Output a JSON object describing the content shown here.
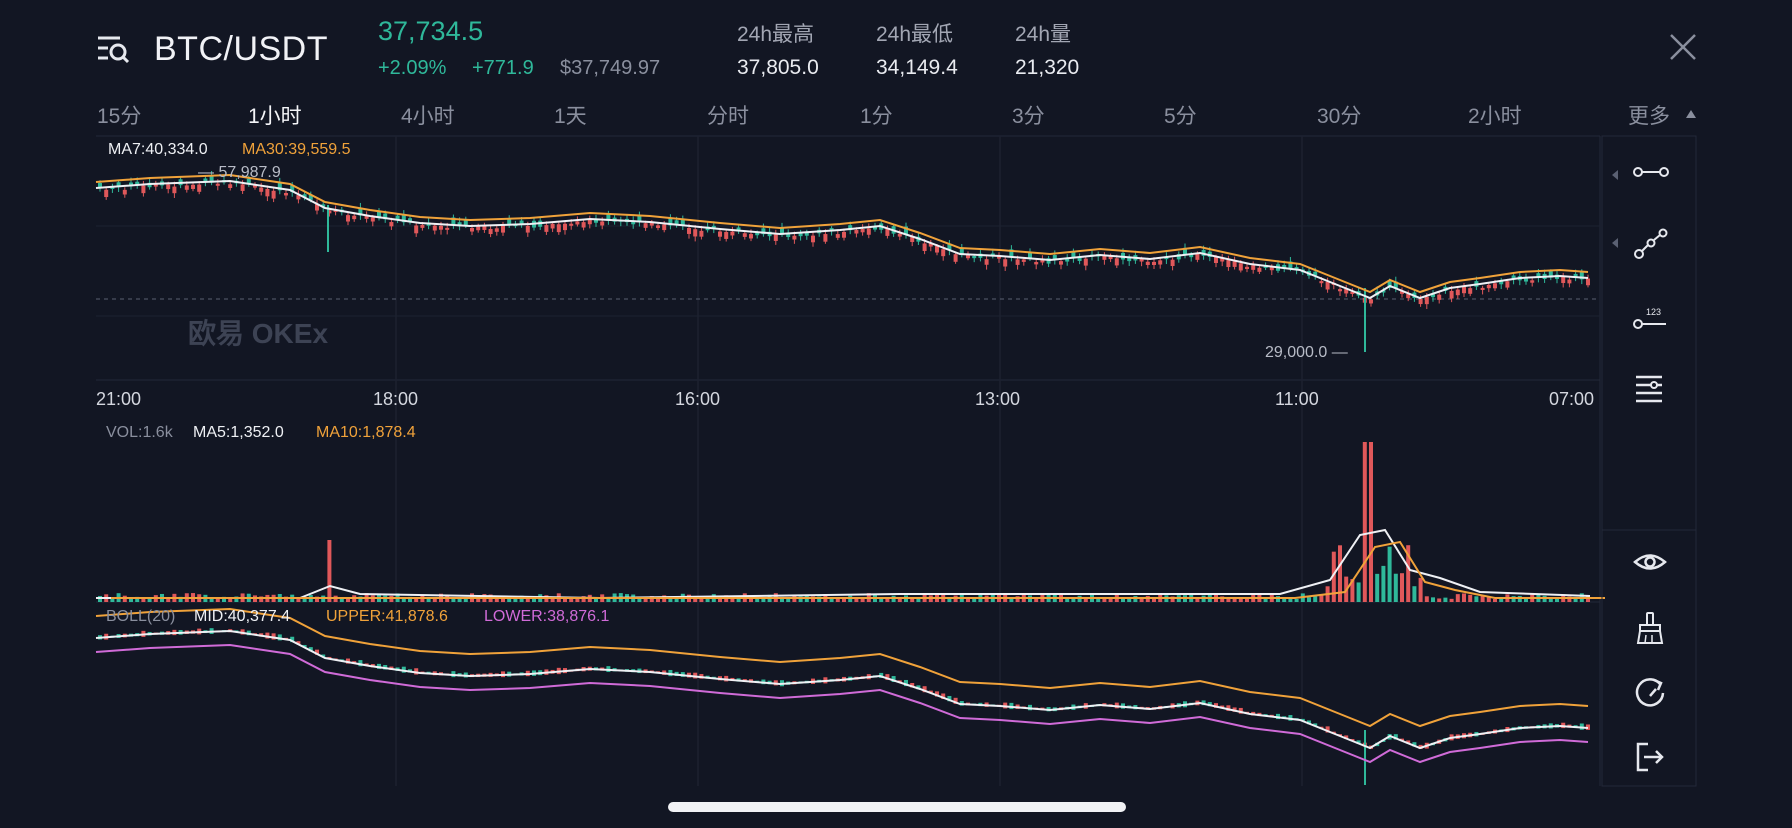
{
  "header": {
    "pair": "BTC/USDT",
    "last_price": "37,734.5",
    "change_pct": "+2.09%",
    "change_abs": "+771.9",
    "usd_price": "$37,749.97",
    "stats": [
      {
        "label": "24h最高",
        "value": "37,805.0"
      },
      {
        "label": "24h最低",
        "value": "34,149.4"
      },
      {
        "label": "24h量",
        "value": "21,320"
      }
    ],
    "icons": {
      "menu": "list-search-icon",
      "close": "close-icon"
    }
  },
  "timeframes": {
    "items": [
      "15分",
      "1小时",
      "4小时",
      "1天",
      "分时",
      "1分",
      "3分",
      "5分",
      "30分",
      "2小时"
    ],
    "active": "1小时",
    "more": "更多"
  },
  "main_chart": {
    "ma7": "MA7:40,334.0",
    "ma30": "MA30:39,559.5",
    "high_marker": "57,987.9",
    "low_marker": "29,000.0",
    "watermark": "欧易 OKEx",
    "time_labels": [
      "21:00",
      "18:00",
      "16:00",
      "13:00",
      "11:00",
      "07:00"
    ]
  },
  "volume": {
    "vol": "VOL:1.6k",
    "ma5": "MA5:1,352.0",
    "ma10": "MA10:1,878.4"
  },
  "boll": {
    "label": "BOLL(20)",
    "mid": "MID:40,377.4",
    "upper": "UPPER:41,878.6",
    "lower": "LOWER:38,876.1"
  },
  "colors": {
    "background": "#121623",
    "up": "#2fb89a",
    "down": "#e0585a",
    "ma_white": "#eef0f4",
    "ma_orange": "#f0a23a",
    "boll_lower": "#d06bd8"
  },
  "toolbar": {
    "icons": [
      "horizontal-line-icon",
      "trend-line-icon",
      "price-line-icon",
      "indicator-settings-icon",
      "eye-icon",
      "brush-icon",
      "refresh-icon",
      "exit-icon"
    ]
  }
}
